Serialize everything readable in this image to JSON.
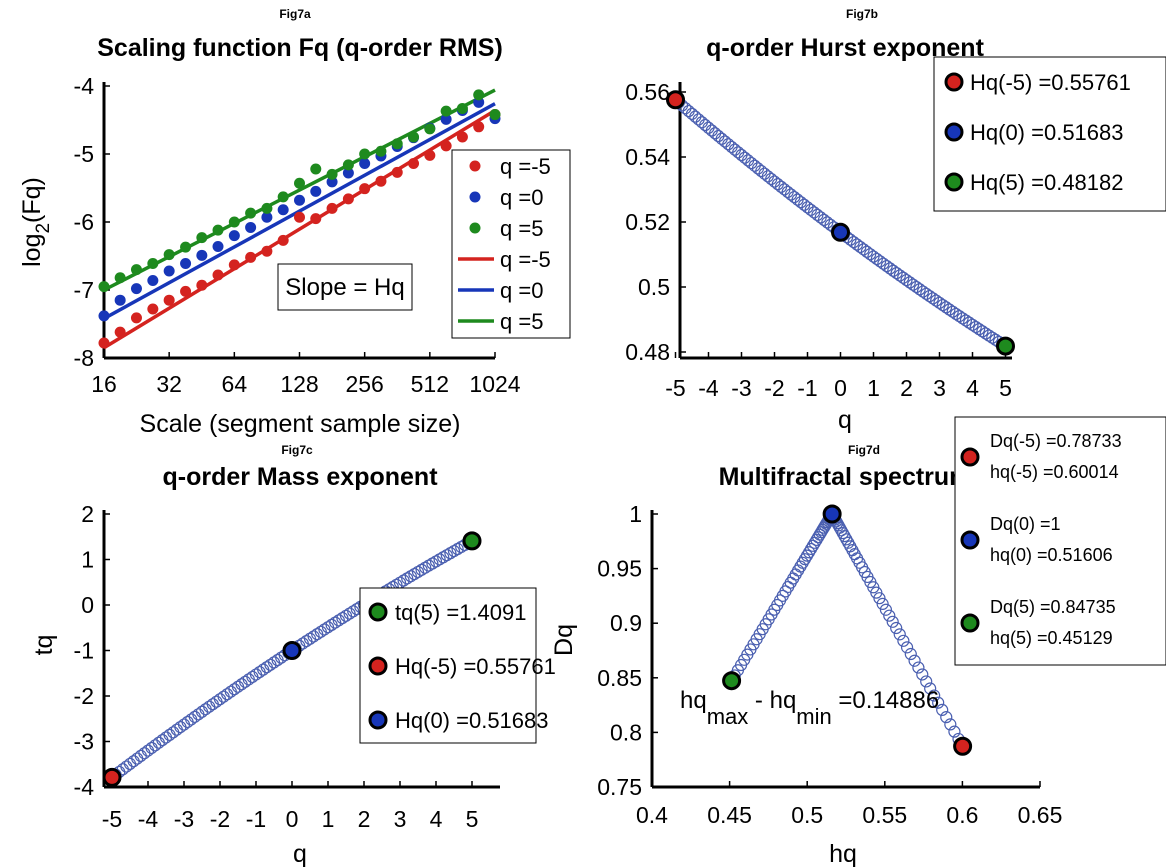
{
  "colors": {
    "red": "#d4231f",
    "blue": "#1736b8",
    "green": "#1e8a1e",
    "ring": "#4a5fb0",
    "axis": "#000000"
  },
  "chart_data": [
    {
      "id": "7a",
      "fig_label": "Fig7a",
      "type": "scatter",
      "title": "Scaling function Fq (q-order RMS)",
      "xlabel": "Scale (segment sample size)",
      "ylabel_main": "log",
      "ylabel_sub": "2",
      "ylabel_tail": "(Fq)",
      "xscale": "log2",
      "xlim": [
        16,
        1024
      ],
      "ylim": [
        -8,
        -4
      ],
      "xticks": [
        16,
        32,
        64,
        128,
        256,
        512,
        1024
      ],
      "xtick_labels": [
        "16",
        "32",
        "64",
        "128",
        "256",
        "512",
        "1024"
      ],
      "yticks": [
        -8,
        -7,
        -6,
        -5,
        -4
      ],
      "ytick_labels": [
        "-8",
        "-7",
        "-6",
        "-5",
        "-4"
      ],
      "grid": false,
      "legend_position": "inside-right",
      "annotation": "Slope = Hq",
      "series": [
        {
          "name": "q =-5",
          "color": "#d4231f",
          "kind": "points",
          "x": [
            16,
            19,
            22.6,
            26.9,
            32,
            38.1,
            45.3,
            53.8,
            64,
            76.1,
            90.5,
            107.6,
            128,
            152.2,
            181,
            215.3,
            256,
            304.4,
            362,
            430.5,
            512,
            608.9,
            724.1,
            861.1,
            1024
          ],
          "y": [
            -7.78,
            -7.62,
            -7.41,
            -7.28,
            -7.15,
            -7.02,
            -6.93,
            -6.78,
            -6.63,
            -6.52,
            -6.43,
            -6.27,
            -5.93,
            -5.95,
            -5.8,
            -5.66,
            -5.51,
            -5.4,
            -5.27,
            -5.14,
            -5.02,
            -4.88,
            -4.75,
            -4.6,
            -4.42
          ]
        },
        {
          "name": "q =0",
          "color": "#1736b8",
          "kind": "points",
          "x": [
            16,
            19,
            22.6,
            26.9,
            32,
            38.1,
            45.3,
            53.8,
            64,
            76.1,
            90.5,
            107.6,
            128,
            152.2,
            181,
            215.3,
            256,
            304.4,
            362,
            430.5,
            512,
            608.9,
            724.1,
            861.1,
            1024
          ],
          "y": [
            -7.38,
            -7.15,
            -6.98,
            -6.86,
            -6.72,
            -6.61,
            -6.49,
            -6.36,
            -6.2,
            -6.08,
            -5.93,
            -5.82,
            -5.68,
            -5.55,
            -5.41,
            -5.28,
            -5.14,
            -5.03,
            -4.89,
            -4.76,
            -4.62,
            -4.49,
            -4.36,
            -4.24,
            -4.48
          ]
        },
        {
          "name": "q =5",
          "color": "#1e8a1e",
          "kind": "points",
          "x": [
            16,
            19,
            22.6,
            26.9,
            32,
            38.1,
            45.3,
            53.8,
            64,
            76.1,
            90.5,
            107.6,
            128,
            152.2,
            181,
            215.3,
            256,
            304.4,
            362,
            430.5,
            512,
            608.9,
            724.1,
            861.1,
            1024
          ],
          "y": [
            -6.95,
            -6.82,
            -6.7,
            -6.61,
            -6.48,
            -6.37,
            -6.23,
            -6.12,
            -6.0,
            -5.87,
            -5.8,
            -5.63,
            -5.43,
            -5.22,
            -5.3,
            -5.16,
            -5.0,
            -4.96,
            -4.85,
            -4.75,
            -4.63,
            -4.37,
            -4.33,
            -4.13,
            -4.42
          ]
        },
        {
          "name": "q =-5",
          "color": "#d4231f",
          "kind": "line",
          "x": [
            16,
            1024
          ],
          "y": [
            -7.85,
            -4.36
          ]
        },
        {
          "name": "q =0",
          "color": "#1736b8",
          "kind": "line",
          "x": [
            16,
            1024
          ],
          "y": [
            -7.42,
            -4.26
          ]
        },
        {
          "name": "q =5",
          "color": "#1e8a1e",
          "kind": "line",
          "x": [
            16,
            1024
          ],
          "y": [
            -7.0,
            -4.06
          ]
        }
      ]
    },
    {
      "id": "7b",
      "fig_label": "Fig7b",
      "type": "scatter",
      "title": "q-order Hurst exponent",
      "xlabel": "q",
      "ylabel": "",
      "xlim": [
        -5.5,
        5.5
      ],
      "ylim": [
        0.48,
        0.56
      ],
      "xticks": [
        -5,
        -4,
        -3,
        -2,
        -1,
        0,
        1,
        2,
        3,
        4,
        5
      ],
      "xtick_labels": [
        "-5",
        "-4",
        "-3",
        "-2",
        "-1",
        "0",
        "1",
        "2",
        "3",
        "4",
        "5"
      ],
      "yticks": [
        0.48,
        0.5,
        0.52,
        0.54,
        0.56
      ],
      "ytick_labels": [
        "0.48",
        "0.5",
        "0.52",
        "0.54",
        "0.56"
      ],
      "grid": false,
      "legend_position": "top-right",
      "curve": {
        "q_from": -5,
        "q_to": 5,
        "n": 101,
        "y_points": [
          [
            -5,
            0.55761
          ],
          [
            0,
            0.51683
          ],
          [
            5,
            0.48182
          ]
        ]
      },
      "highlights": [
        {
          "label": "Hq(-5) =0.55761",
          "x": -5,
          "y": 0.55761,
          "color": "#d4231f"
        },
        {
          "label": "Hq(0) =0.51683",
          "x": 0,
          "y": 0.51683,
          "color": "#1736b8"
        },
        {
          "label": "Hq(5) =0.48182",
          "x": 5,
          "y": 0.48182,
          "color": "#1e8a1e"
        }
      ]
    },
    {
      "id": "7c",
      "fig_label": "Fig7c",
      "type": "scatter",
      "title": "q-order Mass exponent",
      "xlabel": "q",
      "ylabel": "tq",
      "xlim": [
        -6,
        6
      ],
      "ylim": [
        -4,
        2
      ],
      "xticks": [
        -5,
        -4,
        -3,
        -2,
        -1,
        0,
        1,
        2,
        3,
        4,
        5
      ],
      "xtick_labels": [
        "-5",
        "-4",
        "-3",
        "-2",
        "-1",
        "0",
        "1",
        "2",
        "3",
        "4",
        "5"
      ],
      "yticks": [
        -4,
        -3,
        -2,
        -1,
        0,
        1,
        2
      ],
      "ytick_labels": [
        "-4",
        "-3",
        "-2",
        "-1",
        "0",
        "1",
        "2"
      ],
      "grid": false,
      "legend_position": "inside-right",
      "curve": {
        "q_from": -5,
        "q_to": 5,
        "n": 101,
        "y_points": [
          [
            -5,
            -3.788
          ],
          [
            0,
            -1.0
          ],
          [
            5,
            1.4091
          ]
        ]
      },
      "highlights": [
        {
          "label": "tq(5) =1.4091",
          "x": 5,
          "y": 1.4091,
          "color": "#1e8a1e"
        },
        {
          "label": "Hq(-5) =0.55761",
          "x": -5,
          "y": -3.788,
          "color": "#d4231f"
        },
        {
          "label": "Hq(0) =0.51683",
          "x": 0,
          "y": -1.0,
          "color": "#1736b8"
        }
      ]
    },
    {
      "id": "7d",
      "fig_label": "Fig7d",
      "type": "scatter",
      "title": "Multifractal spectrum",
      "xlabel": "hq",
      "ylabel": "Dq",
      "xlim": [
        0.4,
        0.65
      ],
      "ylim": [
        0.75,
        1.0
      ],
      "xticks": [
        0.4,
        0.45,
        0.5,
        0.55,
        0.6,
        0.65
      ],
      "xtick_labels": [
        "0.4",
        "0.45",
        "0.5",
        "0.55",
        "0.6",
        "0.65"
      ],
      "yticks": [
        0.75,
        0.8,
        0.85,
        0.9,
        0.95,
        1.0
      ],
      "ytick_labels": [
        "0.75",
        "0.8",
        "0.85",
        "0.9",
        "0.95",
        "1"
      ],
      "grid": false,
      "legend_position": "top-right",
      "annotation": {
        "a": "hq",
        "a_sub": "max",
        "b": " - hq",
        "b_sub": "min",
        "c": " =0.14886"
      },
      "curve": {
        "h_min": 0.45129,
        "h_peak": 0.51606,
        "h_max": 0.60014,
        "d_left": 0.84735,
        "d_right": 0.78733,
        "n": 101
      },
      "highlights": [
        {
          "line1": "Dq(-5) =0.78733",
          "line2": "hq(-5) =0.60014",
          "x": 0.60014,
          "y": 0.78733,
          "color": "#d4231f"
        },
        {
          "line1": "Dq(0) =1",
          "line2": "hq(0) =0.51606",
          "x": 0.51606,
          "y": 1.0,
          "color": "#1736b8"
        },
        {
          "line1": "Dq(5) =0.84735",
          "line2": "hq(5) =0.45129",
          "x": 0.45129,
          "y": 0.84735,
          "color": "#1e8a1e"
        }
      ]
    }
  ]
}
